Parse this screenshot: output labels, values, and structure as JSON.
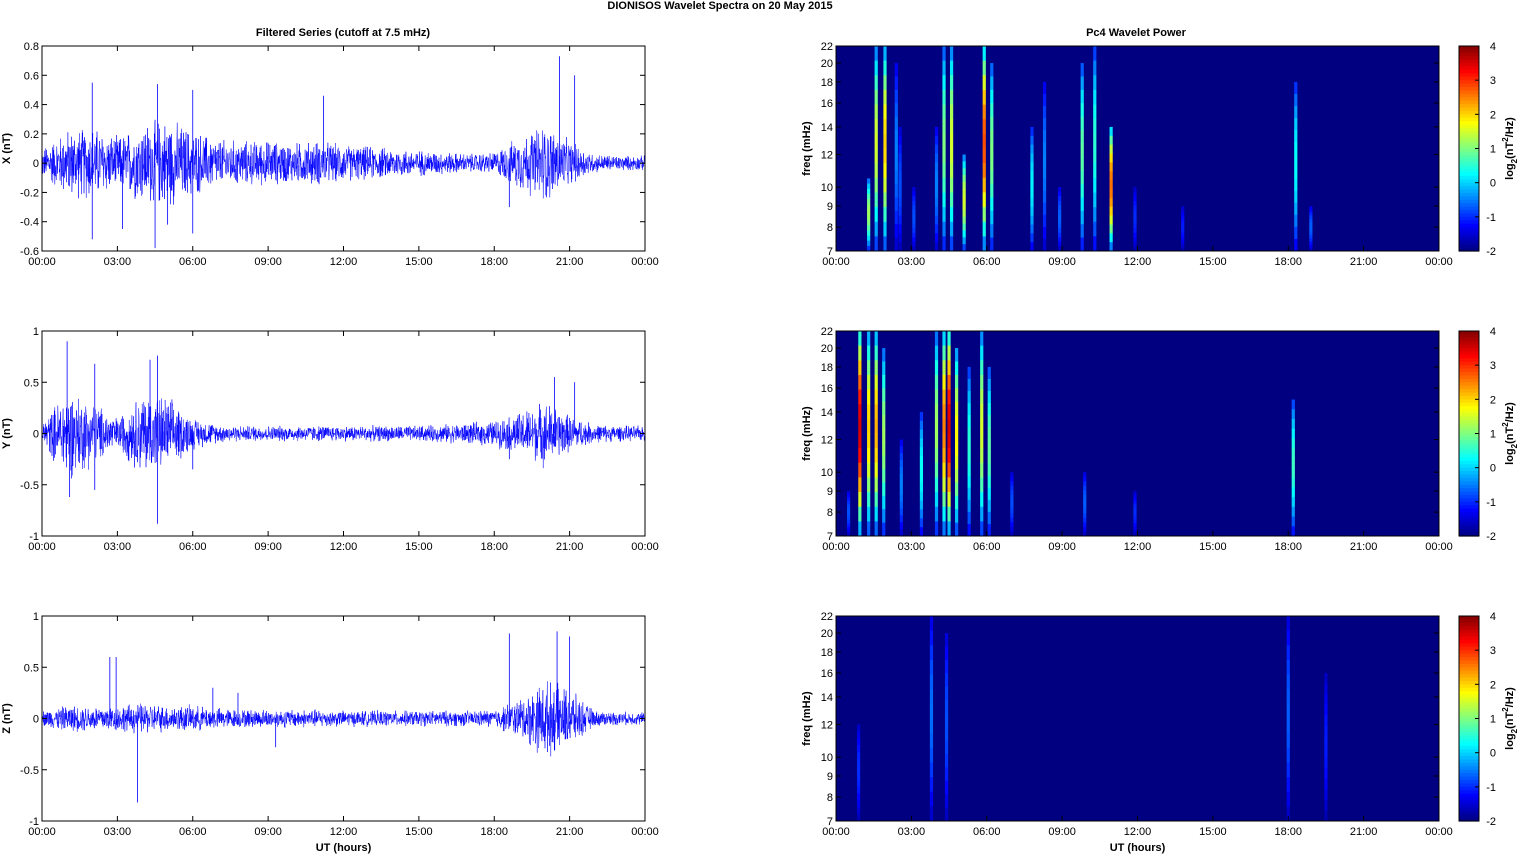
{
  "figure": {
    "title": "DIONISOS Wavelet Spectra on 20 May       2015",
    "left_title": "Filtered Series (cutoff at 7.5 mHz)",
    "right_title": "Pc4 Wavelet Power",
    "xlabel": "UT (hours)"
  },
  "chart_data": [
    {
      "type": "line",
      "title": "Filtered Series (cutoff at 7.5 mHz)",
      "ylabel": "X (nT)",
      "xlabel": "",
      "x_ticks": [
        "00:00",
        "03:00",
        "06:00",
        "09:00",
        "12:00",
        "15:00",
        "18:00",
        "21:00",
        "00:00"
      ],
      "xlim": [
        0,
        24
      ],
      "y_ticks": [
        "0.8",
        "0.6",
        "0.4",
        "0.2",
        "0",
        "-0.2",
        "-0.4",
        "-0.6"
      ],
      "y_tick_values": [
        0.8,
        0.6,
        0.4,
        0.2,
        0,
        -0.2,
        -0.4,
        -0.6
      ],
      "ylim": [
        -0.6,
        0.8
      ],
      "color": "#0000ff",
      "envelope_hours": [
        0,
        1,
        2,
        3,
        4,
        5,
        6,
        7,
        8,
        9,
        10,
        11,
        12,
        13,
        14,
        15,
        16,
        17,
        18,
        19,
        20,
        21,
        22,
        23,
        24
      ],
      "envelope_amplitude": [
        0.08,
        0.18,
        0.2,
        0.14,
        0.22,
        0.24,
        0.18,
        0.13,
        0.12,
        0.12,
        0.11,
        0.12,
        0.1,
        0.09,
        0.08,
        0.07,
        0.06,
        0.05,
        0.06,
        0.14,
        0.22,
        0.12,
        0.05,
        0.04,
        0.04
      ],
      "spikes": [
        [
          2.0,
          0.55
        ],
        [
          2.0,
          -0.52
        ],
        [
          4.6,
          0.54
        ],
        [
          4.5,
          -0.58
        ],
        [
          6.0,
          0.5
        ],
        [
          6.0,
          -0.48
        ],
        [
          11.2,
          0.46
        ],
        [
          18.6,
          -0.3
        ],
        [
          20.6,
          0.73
        ],
        [
          21.2,
          0.6
        ],
        [
          3.2,
          -0.45
        ],
        [
          5.0,
          -0.42
        ]
      ]
    },
    {
      "type": "line",
      "ylabel": "Y (nT)",
      "xlabel": "",
      "x_ticks": [
        "00:00",
        "03:00",
        "06:00",
        "09:00",
        "12:00",
        "15:00",
        "18:00",
        "21:00",
        "00:00"
      ],
      "xlim": [
        0,
        24
      ],
      "y_ticks": [
        "1",
        "0.5",
        "0",
        "-0.5",
        "-1"
      ],
      "y_tick_values": [
        1,
        0.5,
        0,
        -0.5,
        -1
      ],
      "ylim": [
        -1,
        1
      ],
      "color": "#0000ff",
      "envelope_hours": [
        0,
        1,
        2,
        3,
        4,
        5,
        6,
        7,
        8,
        9,
        10,
        11,
        12,
        13,
        14,
        15,
        16,
        17,
        18,
        19,
        20,
        21,
        22,
        23,
        24
      ],
      "envelope_amplitude": [
        0.08,
        0.35,
        0.25,
        0.12,
        0.32,
        0.28,
        0.12,
        0.07,
        0.06,
        0.06,
        0.06,
        0.06,
        0.06,
        0.06,
        0.06,
        0.06,
        0.07,
        0.08,
        0.1,
        0.16,
        0.25,
        0.14,
        0.07,
        0.06,
        0.06
      ],
      "spikes": [
        [
          1.0,
          0.9
        ],
        [
          1.1,
          -0.62
        ],
        [
          2.1,
          0.68
        ],
        [
          2.1,
          -0.55
        ],
        [
          4.6,
          0.76
        ],
        [
          4.6,
          -0.88
        ],
        [
          4.3,
          0.72
        ],
        [
          6.0,
          -0.35
        ],
        [
          18.6,
          -0.25
        ],
        [
          20.4,
          0.55
        ],
        [
          21.2,
          0.5
        ]
      ]
    },
    {
      "type": "line",
      "ylabel": "Z (nT)",
      "xlabel": "UT (hours)",
      "x_ticks": [
        "00:00",
        "03:00",
        "06:00",
        "09:00",
        "12:00",
        "15:00",
        "18:00",
        "21:00",
        "00:00"
      ],
      "xlim": [
        0,
        24
      ],
      "y_ticks": [
        "1",
        "0.5",
        "0",
        "-0.5",
        "-1"
      ],
      "y_tick_values": [
        1,
        0.5,
        0,
        -0.5,
        -1
      ],
      "ylim": [
        -1,
        1
      ],
      "color": "#0000ff",
      "envelope_hours": [
        0,
        1,
        2,
        3,
        4,
        5,
        6,
        7,
        8,
        9,
        10,
        11,
        12,
        13,
        14,
        15,
        16,
        17,
        18,
        19,
        20,
        21,
        22,
        23,
        24
      ],
      "envelope_amplitude": [
        0.06,
        0.1,
        0.1,
        0.1,
        0.12,
        0.1,
        0.1,
        0.08,
        0.07,
        0.07,
        0.07,
        0.07,
        0.06,
        0.06,
        0.06,
        0.06,
        0.06,
        0.06,
        0.07,
        0.15,
        0.3,
        0.22,
        0.06,
        0.05,
        0.05
      ],
      "spikes": [
        [
          2.7,
          0.6
        ],
        [
          2.95,
          0.6
        ],
        [
          3.8,
          -0.82
        ],
        [
          6.8,
          0.3
        ],
        [
          7.8,
          0.25
        ],
        [
          9.3,
          -0.28
        ],
        [
          18.6,
          0.83
        ],
        [
          20.5,
          0.85
        ],
        [
          21.0,
          0.8
        ]
      ]
    },
    {
      "type": "heatmap",
      "title": "Pc4 Wavelet Power",
      "ylabel": "freq (mHz)",
      "xlabel": "",
      "x_ticks": [
        "00:00",
        "03:00",
        "06:00",
        "09:00",
        "12:00",
        "15:00",
        "18:00",
        "21:00",
        "00:00"
      ],
      "xlim": [
        0,
        24
      ],
      "y_ticks": [
        "22",
        "20",
        "18",
        "16",
        "14",
        "12",
        "10",
        "9",
        "8",
        "7"
      ],
      "y_tick_values": [
        22,
        20,
        18,
        16,
        14,
        12,
        10,
        9,
        8,
        7
      ],
      "ylim": [
        7,
        22
      ],
      "yscale": "log",
      "colorbar_label": "log2(nT2/Hz)",
      "colorbar_ticks": [
        "4",
        "3",
        "2",
        "1",
        "0",
        "-1",
        "-2"
      ],
      "colorbar_range": [
        -2,
        4
      ],
      "colormap": "jet",
      "background_value": -2,
      "streaks": [
        {
          "hour": 1.3,
          "top": 10.5,
          "peak": 1.2
        },
        {
          "hour": 1.6,
          "top": 22,
          "peak": 1.5
        },
        {
          "hour": 1.95,
          "top": 22,
          "peak": 2.0
        },
        {
          "hour": 2.4,
          "top": 20,
          "peak": -0.5
        },
        {
          "hour": 2.55,
          "top": 14,
          "peak": -0.8
        },
        {
          "hour": 3.1,
          "top": 10,
          "peak": -0.8
        },
        {
          "hour": 4.0,
          "top": 14,
          "peak": -0.5
        },
        {
          "hour": 4.3,
          "top": 22,
          "peak": 1.0
        },
        {
          "hour": 4.6,
          "top": 22,
          "peak": 1.5
        },
        {
          "hour": 5.1,
          "top": 12,
          "peak": 1.5
        },
        {
          "hour": 5.9,
          "top": 22,
          "peak": 2.8
        },
        {
          "hour": 6.2,
          "top": 20,
          "peak": 1.0
        },
        {
          "hour": 7.8,
          "top": 14,
          "peak": 0.2
        },
        {
          "hour": 8.3,
          "top": 18,
          "peak": -0.5
        },
        {
          "hour": 8.9,
          "top": 10,
          "peak": -0.7
        },
        {
          "hour": 9.8,
          "top": 20,
          "peak": 0.8
        },
        {
          "hour": 10.3,
          "top": 22,
          "peak": 0.5
        },
        {
          "hour": 10.95,
          "top": 14,
          "peak": 2.6
        },
        {
          "hour": 11.9,
          "top": 10,
          "peak": -1.0
        },
        {
          "hour": 13.8,
          "top": 9,
          "peak": -1.1
        },
        {
          "hour": 18.3,
          "top": 18,
          "peak": 0.3
        },
        {
          "hour": 18.9,
          "top": 9,
          "peak": -0.7
        }
      ]
    },
    {
      "type": "heatmap",
      "ylabel": "freq (mHz)",
      "xlabel": "",
      "x_ticks": [
        "00:00",
        "03:00",
        "06:00",
        "09:00",
        "12:00",
        "15:00",
        "18:00",
        "21:00",
        "00:00"
      ],
      "xlim": [
        0,
        24
      ],
      "y_ticks": [
        "22",
        "20",
        "18",
        "16",
        "14",
        "12",
        "10",
        "9",
        "8",
        "7"
      ],
      "y_tick_values": [
        22,
        20,
        18,
        16,
        14,
        12,
        10,
        9,
        8,
        7
      ],
      "ylim": [
        7,
        22
      ],
      "yscale": "log",
      "colorbar_label": "log2(nT2/Hz)",
      "colorbar_ticks": [
        "4",
        "3",
        "2",
        "1",
        "0",
        "-1",
        "-2"
      ],
      "colorbar_range": [
        -2,
        4
      ],
      "colormap": "jet",
      "background_value": -2,
      "streaks": [
        {
          "hour": 0.5,
          "top": 9,
          "peak": -0.8
        },
        {
          "hour": 0.95,
          "top": 22,
          "peak": 3.5
        },
        {
          "hour": 1.3,
          "top": 22,
          "peak": 2.0
        },
        {
          "hour": 1.6,
          "top": 22,
          "peak": 2.2
        },
        {
          "hour": 1.9,
          "top": 20,
          "peak": 1.2
        },
        {
          "hour": 2.6,
          "top": 12,
          "peak": -0.5
        },
        {
          "hour": 3.4,
          "top": 14,
          "peak": 0.3
        },
        {
          "hour": 4.0,
          "top": 22,
          "peak": 1.2
        },
        {
          "hour": 4.3,
          "top": 22,
          "peak": 2.5
        },
        {
          "hour": 4.5,
          "top": 22,
          "peak": 3.5
        },
        {
          "hour": 4.8,
          "top": 20,
          "peak": 1.8
        },
        {
          "hour": 5.3,
          "top": 18,
          "peak": 0.5
        },
        {
          "hour": 5.8,
          "top": 22,
          "peak": 1.5
        },
        {
          "hour": 6.1,
          "top": 18,
          "peak": 0.8
        },
        {
          "hour": 7.0,
          "top": 10,
          "peak": -0.8
        },
        {
          "hour": 9.9,
          "top": 10,
          "peak": -0.7
        },
        {
          "hour": 11.9,
          "top": 9,
          "peak": -1.0
        },
        {
          "hour": 18.2,
          "top": 15,
          "peak": 0.6
        }
      ]
    },
    {
      "type": "heatmap",
      "ylabel": "freq (mHz)",
      "xlabel": "UT (hours)",
      "x_ticks": [
        "00:00",
        "03:00",
        "06:00",
        "09:00",
        "12:00",
        "15:00",
        "18:00",
        "21:00",
        "00:00"
      ],
      "xlim": [
        0,
        24
      ],
      "y_ticks": [
        "22",
        "20",
        "18",
        "16",
        "14",
        "12",
        "10",
        "9",
        "8",
        "7"
      ],
      "y_tick_values": [
        22,
        20,
        18,
        16,
        14,
        12,
        10,
        9,
        8,
        7
      ],
      "ylim": [
        7,
        22
      ],
      "yscale": "log",
      "colorbar_label": "log2(nT2/Hz)",
      "colorbar_ticks": [
        "4",
        "3",
        "2",
        "1",
        "0",
        "-1",
        "-2"
      ],
      "colorbar_range": [
        -2,
        4
      ],
      "colormap": "jet",
      "background_value": -2,
      "streaks": [
        {
          "hour": 0.9,
          "top": 12,
          "peak": -1.0
        },
        {
          "hour": 3.8,
          "top": 22,
          "peak": -0.6
        },
        {
          "hour": 4.4,
          "top": 20,
          "peak": -0.8
        },
        {
          "hour": 18.0,
          "top": 22,
          "peak": -0.7
        },
        {
          "hour": 19.5,
          "top": 16,
          "peak": -1.1
        }
      ]
    }
  ]
}
